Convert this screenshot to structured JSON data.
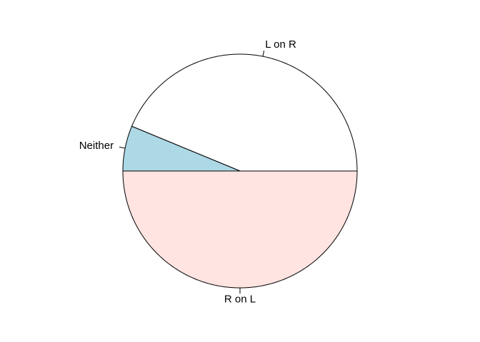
{
  "chart_data": {
    "type": "pie",
    "title": "",
    "direction": "counterclockwise",
    "start_angle_deg": 0,
    "slices": [
      {
        "label": "L on R",
        "value": 0.4375,
        "color": "#ffffff"
      },
      {
        "label": "Neither",
        "value": 0.0625,
        "color": "#add8e6"
      },
      {
        "label": "R on L",
        "value": 0.5,
        "color": "#ffe4e1"
      }
    ]
  }
}
